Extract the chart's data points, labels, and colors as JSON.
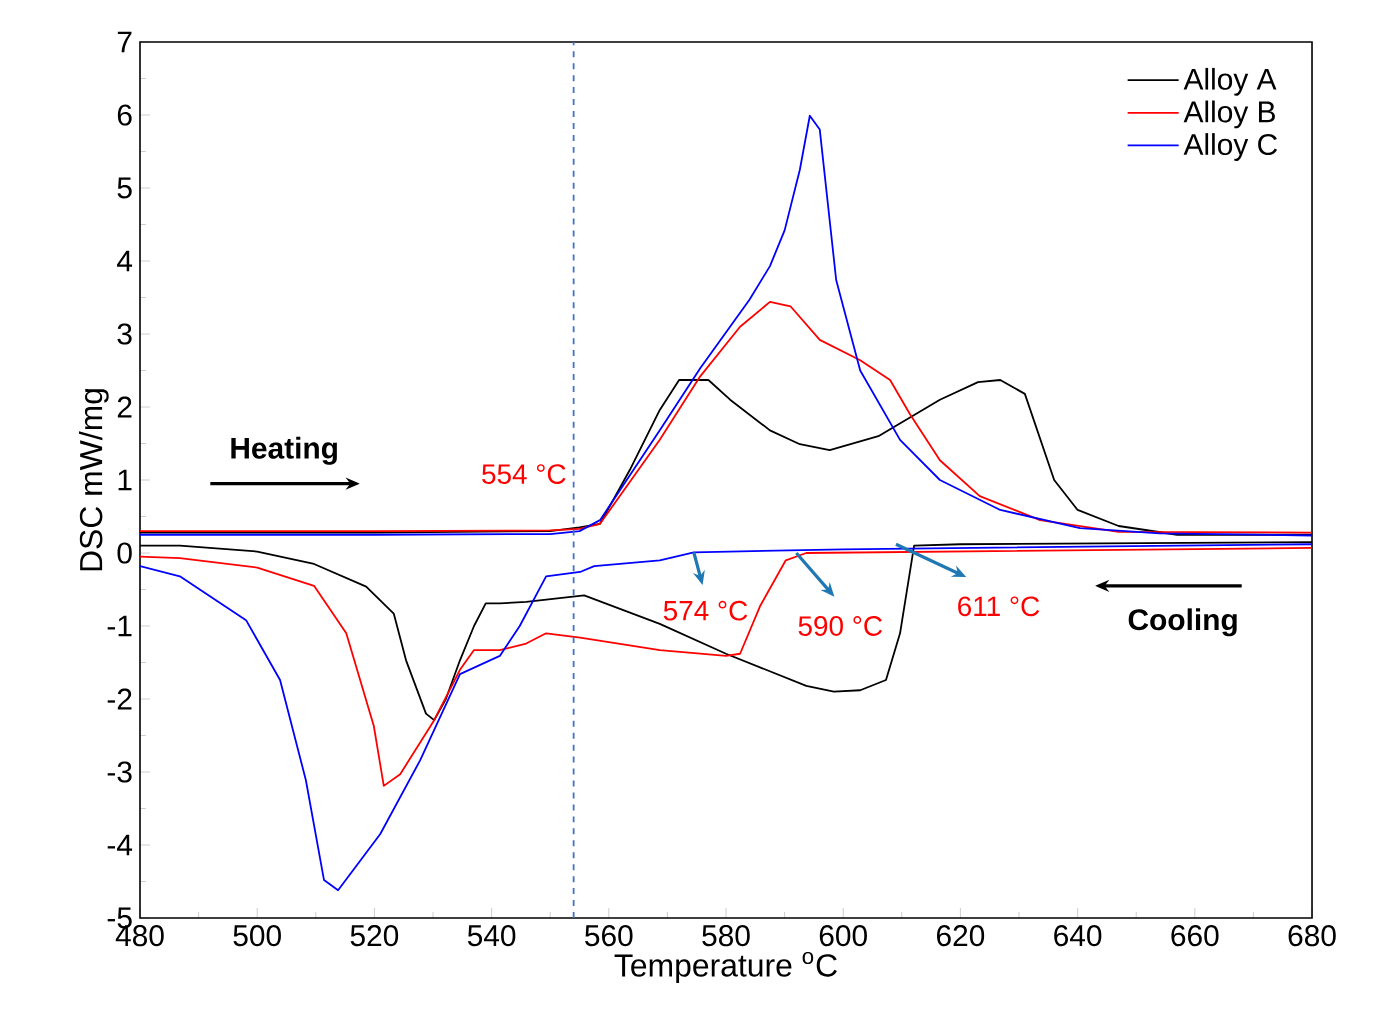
{
  "chart_data": {
    "type": "line",
    "xlabel": "Temperature $^{o}$C",
    "ylabel": "DSC mW/mg",
    "xlim": [
      480,
      680
    ],
    "ylim": [
      -5,
      7
    ],
    "xticks": [
      480,
      500,
      520,
      540,
      560,
      580,
      600,
      620,
      640,
      660,
      680
    ],
    "yticks": [
      -5,
      -4,
      -3,
      -2,
      -1,
      0,
      1,
      2,
      3,
      4,
      5,
      6,
      7
    ],
    "grid": false,
    "legend": "top right",
    "line_style": "solid",
    "series": [
      {
        "name": "Alloy A",
        "color": "#000000",
        "x": [
          480,
          520,
          550,
          555,
          558.5,
          563.6,
          568.7,
          572,
          577,
          580.7,
          587.5,
          592.6,
          597.7,
          606,
          616.5,
          623,
          626.8,
          631,
          636,
          640,
          647,
          657,
          680
        ],
        "values": [
          0.28,
          0.28,
          0.3,
          0.35,
          0.4,
          1.14,
          1.96,
          2.37,
          2.37,
          2.1,
          1.68,
          1.49,
          1.41,
          1.6,
          2.1,
          2.34,
          2.37,
          2.18,
          1.0,
          0.59,
          0.37,
          0.25,
          0.25
        ]
      },
      {
        "name": "Alloy B",
        "color": "#ff0000",
        "x": [
          480,
          520,
          550,
          555,
          558.5,
          568.7,
          575.6,
          582.4,
          587.5,
          591,
          596,
          602.9,
          608,
          611.4,
          616.5,
          623.3,
          633.6,
          647,
          680
        ],
        "values": [
          0.3,
          0.3,
          0.31,
          0.33,
          0.4,
          1.55,
          2.42,
          3.1,
          3.44,
          3.38,
          2.92,
          2.64,
          2.37,
          1.9,
          1.27,
          0.78,
          0.45,
          0.29,
          0.28
        ]
      },
      {
        "name": "Alloy C",
        "color": "#0000ff",
        "x": [
          480,
          520,
          550,
          555,
          558.5,
          568.7,
          575.6,
          584,
          587.5,
          590,
          592.6,
          594.3,
          596,
          598.8,
          602.9,
          609.7,
          616.5,
          626.8,
          640.4,
          654,
          680
        ],
        "values": [
          0.25,
          0.25,
          0.26,
          0.3,
          0.45,
          1.68,
          2.53,
          3.47,
          3.93,
          4.42,
          5.25,
          5.99,
          5.8,
          3.74,
          2.5,
          1.55,
          1.0,
          0.59,
          0.34,
          0.27,
          0.24
        ]
      },
      {
        "color": "#000000",
        "x": [
          480,
          486.8,
          500,
          509.7,
          518.6,
          523.3,
          525.4,
          528.8,
          530.2,
          532.2,
          534.6,
          537,
          539,
          541.4,
          545.9,
          555.8,
          568.7,
          580,
          593.7,
          598.4,
          602.9,
          607.3,
          609.7,
          612.1,
          620,
          680
        ],
        "values": [
          0.1,
          0.1,
          0.02,
          -0.15,
          -0.46,
          -0.83,
          -1.47,
          -2.2,
          -2.29,
          -2.0,
          -1.47,
          -1.0,
          -0.69,
          -0.69,
          -0.67,
          -0.58,
          -0.97,
          -1.38,
          -1.82,
          -1.9,
          -1.88,
          -1.74,
          -1.1,
          0.1,
          0.12,
          0.15
        ]
      },
      {
        "color": "#ff0000",
        "x": [
          480,
          486.8,
          500,
          509.7,
          515.2,
          519.9,
          521.6,
          524.4,
          530.2,
          534.6,
          537,
          541.4,
          545.9,
          549.3,
          555.1,
          568.7,
          580,
          582.4,
          585.8,
          590.2,
          593.7,
          680
        ],
        "values": [
          -0.05,
          -0.07,
          -0.2,
          -0.45,
          -1.1,
          -2.37,
          -3.19,
          -3.03,
          -2.29,
          -1.6,
          -1.33,
          -1.33,
          -1.24,
          -1.1,
          -1.16,
          -1.33,
          -1.41,
          -1.38,
          -0.73,
          -0.1,
          0.0,
          0.07
        ]
      },
      {
        "color": "#0000ff",
        "x": [
          480,
          486.8,
          498.1,
          503.9,
          508.3,
          511.4,
          513.8,
          521,
          527.8,
          534.6,
          541.4,
          544.8,
          549.3,
          555.1,
          557.5,
          568.7,
          574.5,
          600,
          680
        ],
        "values": [
          -0.18,
          -0.32,
          -0.92,
          -1.74,
          -3.11,
          -4.48,
          -4.62,
          -3.85,
          -2.84,
          -1.66,
          -1.41,
          -1.0,
          -0.32,
          -0.26,
          -0.18,
          -0.1,
          0.01,
          0.05,
          0.12
        ]
      }
    ],
    "ref_lines": [
      {
        "axis": "x",
        "value": 554,
        "label": "554 °C",
        "color": "#4472c4",
        "line_style": "dashed"
      }
    ],
    "annotations": [
      "Heating",
      "Cooling",
      {
        "text": "574 °C",
        "x": 574.5,
        "y": 0.01
      },
      {
        "text": "590 °C",
        "x": 592,
        "y": 0.0
      },
      {
        "text": "611 °C",
        "x": 609,
        "y": 0.12
      }
    ]
  }
}
